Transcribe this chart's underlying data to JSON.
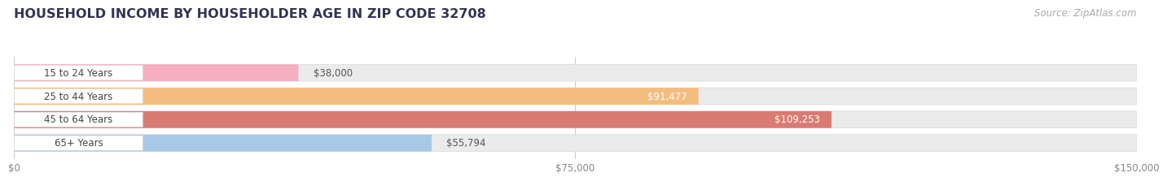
{
  "title": "HOUSEHOLD INCOME BY HOUSEHOLDER AGE IN ZIP CODE 32708",
  "source": "Source: ZipAtlas.com",
  "categories": [
    "15 to 24 Years",
    "25 to 44 Years",
    "45 to 64 Years",
    "65+ Years"
  ],
  "values": [
    38000,
    91477,
    109253,
    55794
  ],
  "bar_colors": [
    "#f5afc0",
    "#f5bc80",
    "#d97b72",
    "#a8c8e8"
  ],
  "bar_track_color": "#ebebeb",
  "bar_track_edge": "#d8d8d8",
  "value_label_colors": [
    "#555555",
    "#ffffff",
    "#ffffff",
    "#555555"
  ],
  "x_ticks": [
    0,
    75000,
    150000
  ],
  "x_tick_labels": [
    "$0",
    "$75,000",
    "$150,000"
  ],
  "xlim": [
    0,
    150000
  ],
  "value_labels": [
    "$38,000",
    "$91,477",
    "$109,253",
    "$55,794"
  ],
  "background_color": "#ffffff",
  "title_color": "#333355",
  "source_color": "#aaaaaa",
  "cat_label_color": "#444444",
  "grid_color": "#cccccc",
  "title_fontsize": 11.5,
  "source_fontsize": 8.5,
  "cat_fontsize": 8.5,
  "value_fontsize": 8.5,
  "tick_fontsize": 8.5
}
